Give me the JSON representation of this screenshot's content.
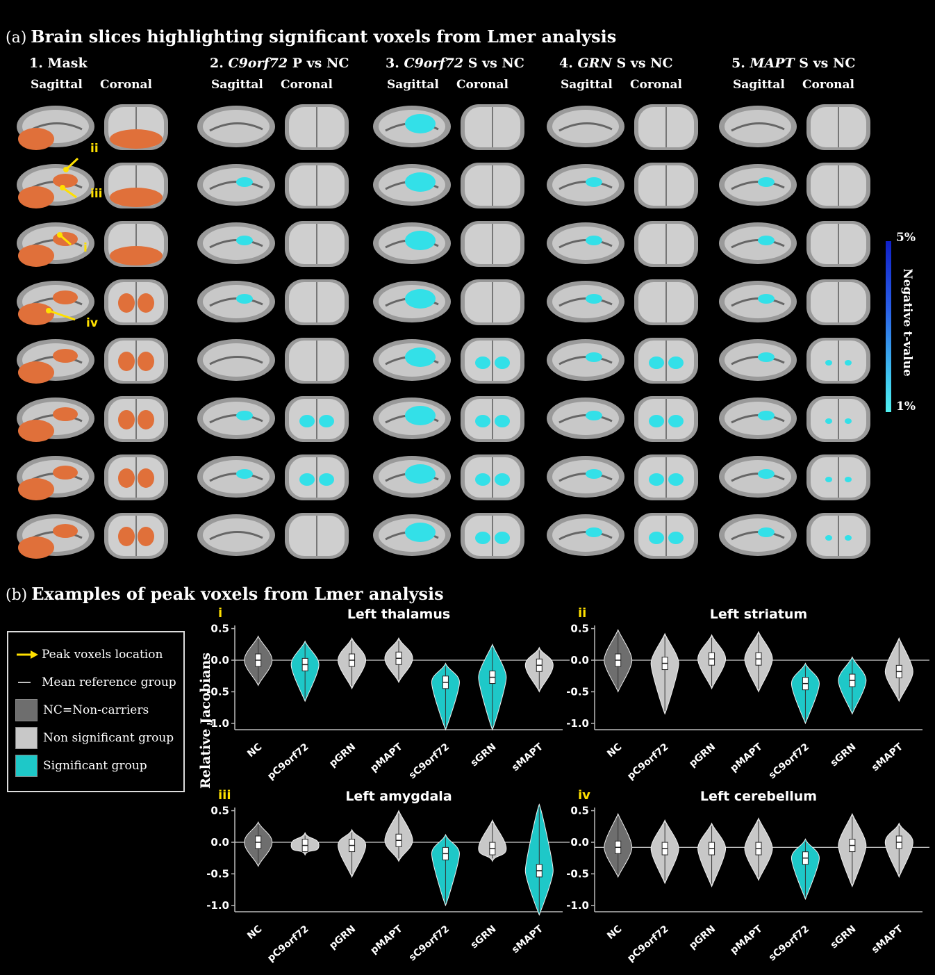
{
  "panel_a": {
    "letter": "(a)",
    "title": "Brain slices highlighting significant voxels from Lmer analysis",
    "columns": [
      {
        "num": "1.",
        "name": "Mask",
        "italic": "",
        "suffix": ""
      },
      {
        "num": "2.",
        "name": "",
        "italic": "C9orf72",
        "suffix": " P vs NC"
      },
      {
        "num": "3.",
        "name": "",
        "italic": "C9orf72",
        "suffix": " S vs NC"
      },
      {
        "num": "4.",
        "name": "",
        "italic": "GRN",
        "suffix": " S vs NC"
      },
      {
        "num": "5.",
        "name": "",
        "italic": "MAPT",
        "suffix": " S vs NC"
      }
    ],
    "sub_sagittal": "Sagittal",
    "sub_coronal": "Coronal",
    "markers": [
      "ii",
      "iii",
      "i",
      "iv"
    ],
    "colorbar": {
      "top": "5%",
      "bottom": "1%",
      "label": "Negative t-value"
    }
  },
  "panel_b": {
    "letter": "(b)",
    "title": "Examples of peak voxels from Lmer analysis",
    "ylabel": "Relative Jacobians",
    "legend": {
      "arrow": "Peak voxels location",
      "line": "Mean reference group",
      "nc": "NC=Non-carriers",
      "nonsig": "Non significant group",
      "sig": "Significant group"
    },
    "colors": {
      "nc": "#6e6e6e",
      "nonsig": "#c8c8c8",
      "sig": "#1ec8c8",
      "marker": "#ffe000",
      "mask": "#e0703a",
      "cyan": "#33e0e8"
    }
  },
  "chart_data": [
    {
      "type": "violin",
      "marker": "i",
      "title": "Left thalamus",
      "categories": [
        "NC",
        "pC9orf72",
        "pGRN",
        "pMAPT",
        "sC9orf72",
        "sGRN",
        "sMAPT"
      ],
      "significant": [
        false,
        true,
        false,
        false,
        true,
        true,
        false
      ],
      "medians": [
        0.0,
        -0.07,
        0.0,
        0.03,
        -0.35,
        -0.27,
        -0.08
      ],
      "mins": [
        -0.4,
        -0.65,
        -0.45,
        -0.35,
        -1.1,
        -1.1,
        -0.5
      ],
      "maxs": [
        0.38,
        0.3,
        0.35,
        0.35,
        -0.05,
        0.25,
        0.2
      ],
      "ylim": [
        -1.1,
        0.55
      ],
      "yticks": [
        0.5,
        0.0,
        -0.5,
        -1.0
      ],
      "reference": 0.0
    },
    {
      "type": "violin",
      "marker": "ii",
      "title": "Left striatum",
      "categories": [
        "NC",
        "pC9orf72",
        "pGRN",
        "pMAPT",
        "sC9orf72",
        "sGRN",
        "sMAPT"
      ],
      "significant": [
        false,
        false,
        false,
        false,
        true,
        true,
        false
      ],
      "medians": [
        0.0,
        -0.05,
        0.02,
        0.02,
        -0.37,
        -0.32,
        -0.18
      ],
      "mins": [
        -0.5,
        -0.85,
        -0.45,
        -0.5,
        -1.0,
        -0.85,
        -0.65
      ],
      "maxs": [
        0.48,
        0.42,
        0.4,
        0.45,
        -0.05,
        0.05,
        0.35
      ],
      "ylim": [
        -1.1,
        0.55
      ],
      "yticks": [
        0.5,
        0.0,
        -0.5,
        -1.0
      ],
      "reference": 0.0
    },
    {
      "type": "violin",
      "marker": "iii",
      "title": "Left amygdala",
      "categories": [
        "NC",
        "pC9orf72",
        "pGRN",
        "pMAPT",
        "sC9orf72",
        "sGRN",
        "sMAPT"
      ],
      "significant": [
        false,
        false,
        false,
        false,
        true,
        false,
        true
      ],
      "medians": [
        0.0,
        -0.05,
        -0.05,
        0.03,
        -0.18,
        -0.1,
        -0.45
      ],
      "mins": [
        -0.38,
        -0.2,
        -0.55,
        -0.3,
        -1.0,
        -0.3,
        -1.15
      ],
      "maxs": [
        0.32,
        0.15,
        0.2,
        0.5,
        0.12,
        0.35,
        0.6
      ],
      "ylim": [
        -1.1,
        0.55
      ],
      "yticks": [
        0.5,
        0.0,
        -0.5,
        -1.0
      ],
      "reference": 0.0
    },
    {
      "type": "violin",
      "marker": "iv",
      "title": "Left cerebellum",
      "categories": [
        "NC",
        "pC9orf72",
        "pGRN",
        "pMAPT",
        "sC9orf72",
        "sGRN",
        "sMAPT"
      ],
      "significant": [
        false,
        false,
        false,
        false,
        true,
        false,
        false
      ],
      "medians": [
        -0.08,
        -0.1,
        -0.1,
        -0.1,
        -0.25,
        -0.05,
        0.0
      ],
      "mins": [
        -0.55,
        -0.65,
        -0.7,
        -0.6,
        -0.9,
        -0.7,
        -0.55
      ],
      "maxs": [
        0.45,
        0.35,
        0.3,
        0.38,
        0.05,
        0.45,
        0.3
      ],
      "ylim": [
        -1.1,
        0.55
      ],
      "yticks": [
        0.5,
        0.0,
        -0.5,
        -1.0
      ],
      "reference": -0.08
    }
  ]
}
